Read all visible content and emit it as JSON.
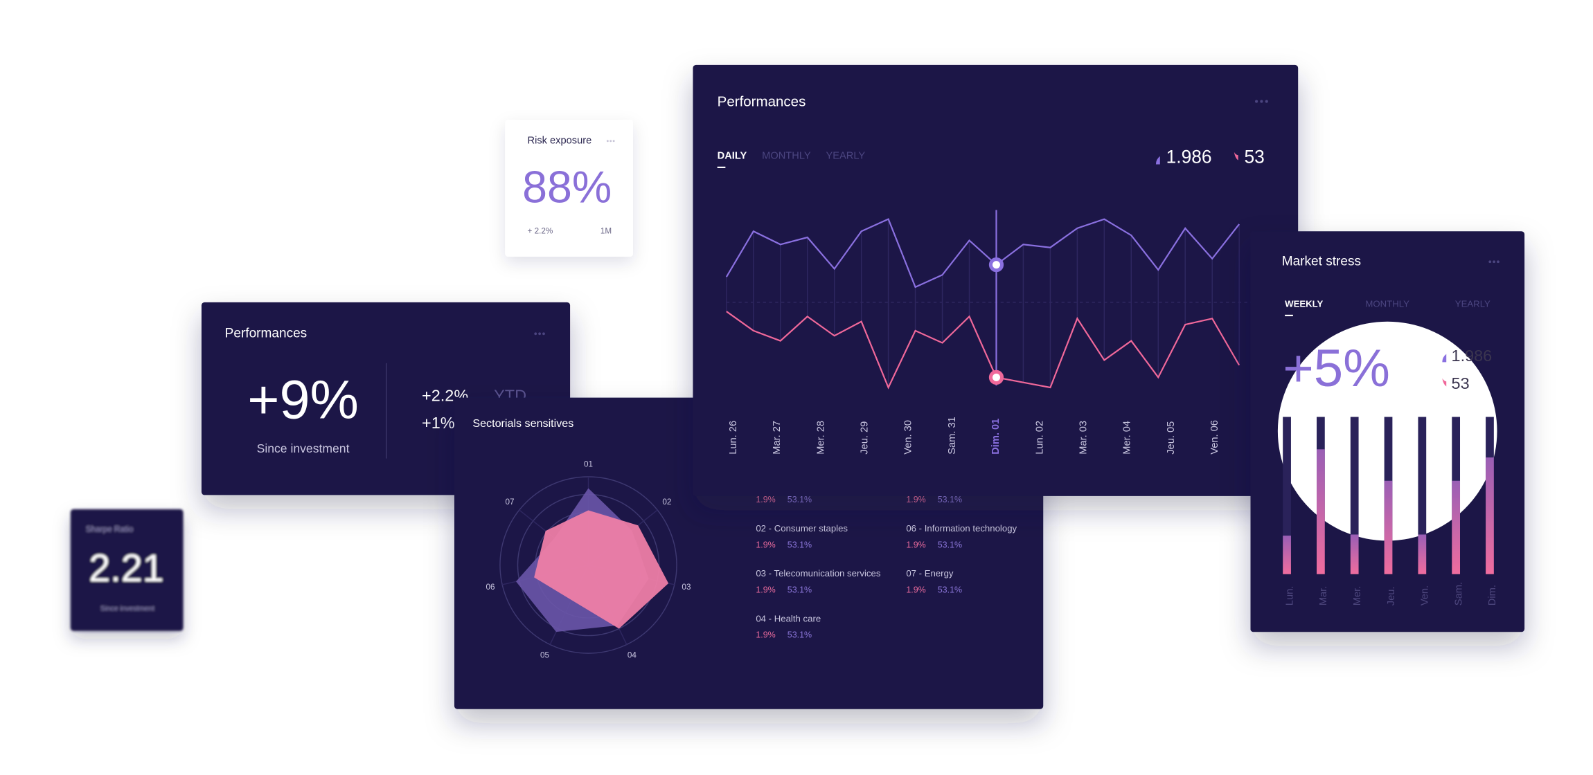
{
  "sharpe_card": {
    "title": "Sharpe Ratio",
    "value": "2.21",
    "caption": "Since investment"
  },
  "risk_card": {
    "title": "Risk exposure",
    "value": "88%",
    "change": "+ 2.2%",
    "period": "1M"
  },
  "summary_card": {
    "title": "Performances",
    "value": "+9%",
    "caption": "Since investment",
    "stats": [
      {
        "value": "+2.2%",
        "label": "YTD"
      },
      {
        "value": "+1%"
      }
    ]
  },
  "sectorials_card": {
    "title": "Sectorials sensitives",
    "radar": {
      "type": "radar",
      "axes": [
        "01",
        "02",
        "03",
        "04",
        "05",
        "06",
        "07"
      ],
      "rlim": [
        0,
        100
      ],
      "rticks": [
        60,
        80,
        100
      ],
      "series": [
        {
          "color": "#6a55a8",
          "values": [
            87,
            63,
            70,
            76,
            84,
            84,
            49
          ]
        },
        {
          "color": "#ef7ea7",
          "values": [
            62,
            72,
            93,
            80,
            44,
            63,
            62
          ]
        }
      ]
    },
    "items": [
      {
        "share": "1.9%",
        "weight": "53.1%"
      },
      {
        "name": "02 - Consumer staples",
        "share": "1.9%",
        "weight": "53.1%"
      },
      {
        "name": "03 - Telecomunication services",
        "share": "1.9%",
        "weight": "53.1%"
      },
      {
        "name": "04 - Health care",
        "share": "1.9%",
        "weight": "53.1%"
      },
      {
        "share": "1.9%",
        "weight": "53.1%"
      },
      {
        "name": "06 - Information technology",
        "share": "1.9%",
        "weight": "53.1%"
      },
      {
        "name": "07 - Energy",
        "share": "1.9%",
        "weight": "53.1%"
      }
    ]
  },
  "performance_card": {
    "title": "Performances",
    "tabs": [
      "DAILY",
      "MONTHLY",
      "YEARLY"
    ],
    "stats": [
      "1.986",
      "53"
    ],
    "line_chart": {
      "type": "line",
      "ylim": [
        0,
        100
      ],
      "x_labels": [
        "Lun. 26",
        "Mar. 27",
        "Mer. 28",
        "Jeu. 29",
        "Ven. 30",
        "Sam. 31",
        "Dim. 01",
        "Lun. 02",
        "Mar. 03",
        "Mer. 04",
        "Jeu. 05",
        "Ven. 06"
      ],
      "active_label": 6,
      "active_point": 10,
      "series": [
        {
          "color": "#8a6fe0",
          "values": [
            63.5,
            86,
            79.5,
            83,
            67.5,
            86,
            92,
            58.5,
            64.5,
            81.5,
            69.5,
            79.5,
            78,
            87.5,
            92,
            84,
            67,
            87.5,
            72.5,
            89.5
          ]
        },
        {
          "color": "#f0679a",
          "values": [
            46.5,
            37,
            32,
            44,
            34.5,
            41.5,
            9,
            37,
            31,
            44,
            14,
            11.5,
            9,
            43,
            22.5,
            32,
            14,
            40,
            43,
            20
          ]
        }
      ]
    }
  },
  "stress_card": {
    "title": "Market stress",
    "tabs": [
      "WEEKLY",
      "MONTHLY",
      "YEARLY"
    ],
    "value": "+5%",
    "stats": [
      "1.986",
      "53"
    ],
    "bar_chart": {
      "type": "bar",
      "ylim": [
        0,
        100
      ],
      "categories": [
        "Lun.",
        "Mar.",
        "Mer.",
        "Jeu.",
        "Ven.",
        "Sam.",
        "Dim."
      ],
      "values": [
        24.5,
        79.4,
        25.2,
        59.4,
        25.2,
        59.4,
        74.2
      ]
    }
  }
}
